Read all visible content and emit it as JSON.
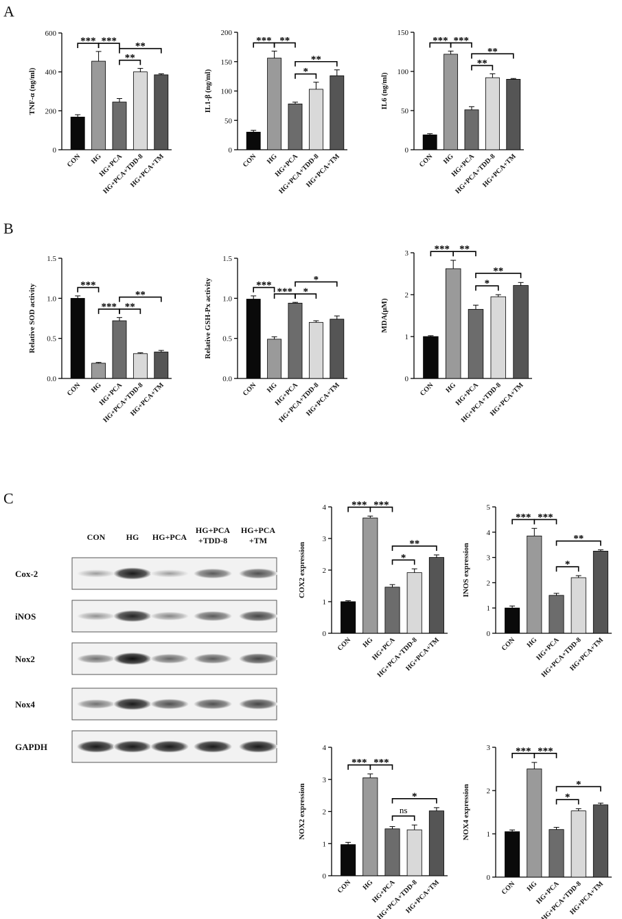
{
  "figure": {
    "panel_labels": [
      "A",
      "B",
      "C"
    ]
  },
  "categories": [
    "CON",
    "HG",
    "HG+PCA",
    "HG+PCA+TDD-8",
    "HG+PCA+TM"
  ],
  "colors": {
    "bars": [
      "#0a0a0a",
      "#9a9a9a",
      "#6c6c6c",
      "#d9d9d9",
      "#555555"
    ]
  },
  "chart_data": [
    {
      "id": "tnf",
      "type": "bar",
      "ylabel": "TNF-α (ng/ml)",
      "ylim": [
        0,
        600
      ],
      "yticks": [
        0,
        200,
        400,
        600
      ],
      "categories": [
        "CON",
        "HG",
        "HG+PCA",
        "HG+PCA+TDD-8",
        "HG+PCA+TM"
      ],
      "values": [
        168,
        455,
        245,
        400,
        385
      ],
      "errors": [
        12,
        50,
        18,
        18,
        5
      ],
      "significance": [
        {
          "from": 0,
          "to": 1,
          "label": "***"
        },
        {
          "from": 1,
          "to": 2,
          "label": "***"
        },
        {
          "from": 2,
          "to": 3,
          "label": "**"
        },
        {
          "from": 2,
          "to": 4,
          "label": "**"
        }
      ]
    },
    {
      "id": "il1b",
      "type": "bar",
      "ylabel": "IL1-β (ng/ml)",
      "ylim": [
        0,
        200
      ],
      "yticks": [
        0,
        50,
        100,
        150,
        200
      ],
      "categories": [
        "CON",
        "HG",
        "HG+PCA",
        "HG+PCA+TDD-8",
        "HG+PCA+TM"
      ],
      "values": [
        30,
        156,
        78,
        103,
        126
      ],
      "errors": [
        3,
        12,
        3,
        12,
        10
      ],
      "significance": [
        {
          "from": 0,
          "to": 1,
          "label": "***"
        },
        {
          "from": 1,
          "to": 2,
          "label": "**"
        },
        {
          "from": 2,
          "to": 3,
          "label": "*"
        },
        {
          "from": 2,
          "to": 4,
          "label": "**"
        }
      ]
    },
    {
      "id": "il6",
      "type": "bar",
      "ylabel": "IL6 (ng/ml)",
      "ylim": [
        0,
        150
      ],
      "yticks": [
        0,
        50,
        100,
        150
      ],
      "categories": [
        "CON",
        "HG",
        "HG+PCA",
        "HG+PCA+TDD-8",
        "HG+PCA+TM"
      ],
      "values": [
        19,
        122,
        51,
        92,
        90
      ],
      "errors": [
        1.5,
        4,
        4,
        5,
        1
      ],
      "significance": [
        {
          "from": 0,
          "to": 1,
          "label": "***"
        },
        {
          "from": 1,
          "to": 2,
          "label": "***"
        },
        {
          "from": 2,
          "to": 3,
          "label": "**"
        },
        {
          "from": 2,
          "to": 4,
          "label": "**"
        }
      ]
    },
    {
      "id": "sod",
      "type": "bar",
      "ylabel": "Relative SOD activity",
      "ylim": [
        0,
        1.5
      ],
      "yticks": [
        0.0,
        0.5,
        1.0,
        1.5
      ],
      "categories": [
        "CON",
        "HG",
        "HG+PCA",
        "HG+PCA+TDD-8",
        "HG+PCA+TM"
      ],
      "values": [
        1.0,
        0.19,
        0.72,
        0.31,
        0.33
      ],
      "errors": [
        0.03,
        0.01,
        0.04,
        0.01,
        0.02
      ],
      "significance": [
        {
          "from": 0,
          "to": 1,
          "label": "***"
        },
        {
          "from": 1,
          "to": 2,
          "label": "***"
        },
        {
          "from": 2,
          "to": 3,
          "label": "**"
        },
        {
          "from": 2,
          "to": 4,
          "label": "**"
        }
      ]
    },
    {
      "id": "gsh",
      "type": "bar",
      "ylabel": "Relative GSH-Px activity",
      "ylim": [
        0,
        1.5
      ],
      "yticks": [
        0.0,
        0.5,
        1.0,
        1.5
      ],
      "categories": [
        "CON",
        "HG",
        "HG+PCA",
        "HG+PCA+TDD-8",
        "HG+PCA+TM"
      ],
      "values": [
        0.99,
        0.49,
        0.94,
        0.7,
        0.74
      ],
      "errors": [
        0.04,
        0.03,
        0.01,
        0.02,
        0.04
      ],
      "significance": [
        {
          "from": 0,
          "to": 1,
          "label": "***"
        },
        {
          "from": 1,
          "to": 2,
          "label": "***"
        },
        {
          "from": 2,
          "to": 3,
          "label": "*"
        },
        {
          "from": 2,
          "to": 4,
          "label": "*"
        }
      ]
    },
    {
      "id": "mda",
      "type": "bar",
      "ylabel": "MDA(μM)",
      "ylim": [
        0,
        3
      ],
      "yticks": [
        0,
        1,
        2,
        3
      ],
      "categories": [
        "CON",
        "HG",
        "HG+PCA",
        "HG+PCA+TDD-8",
        "HG+PCA+TM"
      ],
      "values": [
        1.0,
        2.62,
        1.65,
        1.95,
        2.22
      ],
      "errors": [
        0.02,
        0.2,
        0.1,
        0.05,
        0.07
      ],
      "significance": [
        {
          "from": 0,
          "to": 1,
          "label": "***"
        },
        {
          "from": 1,
          "to": 2,
          "label": "**"
        },
        {
          "from": 2,
          "to": 3,
          "label": "*"
        },
        {
          "from": 2,
          "to": 4,
          "label": "**"
        }
      ]
    },
    {
      "id": "cox2",
      "type": "bar",
      "ylabel": "COX2 expression",
      "ylim": [
        0,
        4
      ],
      "yticks": [
        0,
        1,
        2,
        3,
        4
      ],
      "categories": [
        "CON",
        "HG",
        "HG+PCA",
        "HG+PCA+TDD-8",
        "HG+PCA+TM"
      ],
      "values": [
        1.0,
        3.65,
        1.46,
        1.92,
        2.4
      ],
      "errors": [
        0.03,
        0.06,
        0.08,
        0.12,
        0.08
      ],
      "significance": [
        {
          "from": 0,
          "to": 1,
          "label": "***"
        },
        {
          "from": 1,
          "to": 2,
          "label": "***"
        },
        {
          "from": 2,
          "to": 3,
          "label": "*"
        },
        {
          "from": 2,
          "to": 4,
          "label": "**"
        }
      ]
    },
    {
      "id": "inos",
      "type": "bar",
      "ylabel": "INOS expression",
      "ylim": [
        0,
        5
      ],
      "yticks": [
        0,
        1,
        2,
        3,
        4,
        5
      ],
      "categories": [
        "CON",
        "HG",
        "HG+PCA",
        "HG+PCA+TDD-8",
        "HG+PCA+TM"
      ],
      "values": [
        1.0,
        3.85,
        1.5,
        2.2,
        3.25
      ],
      "errors": [
        0.08,
        0.3,
        0.08,
        0.08,
        0.05
      ],
      "significance": [
        {
          "from": 0,
          "to": 1,
          "label": "***"
        },
        {
          "from": 1,
          "to": 2,
          "label": "***"
        },
        {
          "from": 2,
          "to": 3,
          "label": "*"
        },
        {
          "from": 2,
          "to": 4,
          "label": "**"
        }
      ]
    },
    {
      "id": "nox2",
      "type": "bar",
      "ylabel": "NOX2 expression",
      "ylim": [
        0,
        4
      ],
      "yticks": [
        0,
        1,
        2,
        3,
        4
      ],
      "categories": [
        "CON",
        "HG",
        "HG+PCA",
        "HG+PCA+TDD-8",
        "HG+PCA+TM"
      ],
      "values": [
        0.97,
        3.05,
        1.46,
        1.43,
        2.02
      ],
      "errors": [
        0.07,
        0.12,
        0.07,
        0.15,
        0.1
      ],
      "significance": [
        {
          "from": 0,
          "to": 1,
          "label": "***"
        },
        {
          "from": 1,
          "to": 2,
          "label": "***"
        },
        {
          "from": 2,
          "to": 3,
          "label": "ns"
        },
        {
          "from": 2,
          "to": 4,
          "label": "*"
        }
      ]
    },
    {
      "id": "nox4",
      "type": "bar",
      "ylabel": "NOX4 expression",
      "ylim": [
        0,
        3
      ],
      "yticks": [
        0,
        1,
        2,
        3
      ],
      "categories": [
        "CON",
        "HG",
        "HG+PCA",
        "HG+PCA+TDD-8",
        "HG+PCA+TM"
      ],
      "values": [
        1.05,
        2.5,
        1.1,
        1.53,
        1.67
      ],
      "errors": [
        0.04,
        0.15,
        0.05,
        0.05,
        0.04
      ],
      "significance": [
        {
          "from": 0,
          "to": 1,
          "label": "***"
        },
        {
          "from": 1,
          "to": 2,
          "label": "***"
        },
        {
          "from": 2,
          "to": 3,
          "label": "*"
        },
        {
          "from": 2,
          "to": 4,
          "label": "*"
        }
      ]
    }
  ],
  "blot": {
    "lane_labels": [
      [
        "CON"
      ],
      [
        "HG"
      ],
      [
        "HG+PCA"
      ],
      [
        "HG+PCA",
        "+TDD-8"
      ],
      [
        "HG+PCA",
        "+TM"
      ]
    ],
    "rows": [
      {
        "name": "Cox-2",
        "intensity": [
          0.35,
          0.95,
          0.35,
          0.65,
          0.7
        ]
      },
      {
        "name": "iNOS",
        "intensity": [
          0.4,
          0.9,
          0.45,
          0.65,
          0.75
        ]
      },
      {
        "name": "Nox2",
        "intensity": [
          0.55,
          1.0,
          0.6,
          0.65,
          0.75
        ]
      },
      {
        "name": "Nox4",
        "intensity": [
          0.55,
          0.95,
          0.7,
          0.7,
          0.75
        ]
      },
      {
        "name": "GAPDH",
        "intensity": [
          0.95,
          0.95,
          0.95,
          0.95,
          0.95
        ]
      }
    ]
  }
}
